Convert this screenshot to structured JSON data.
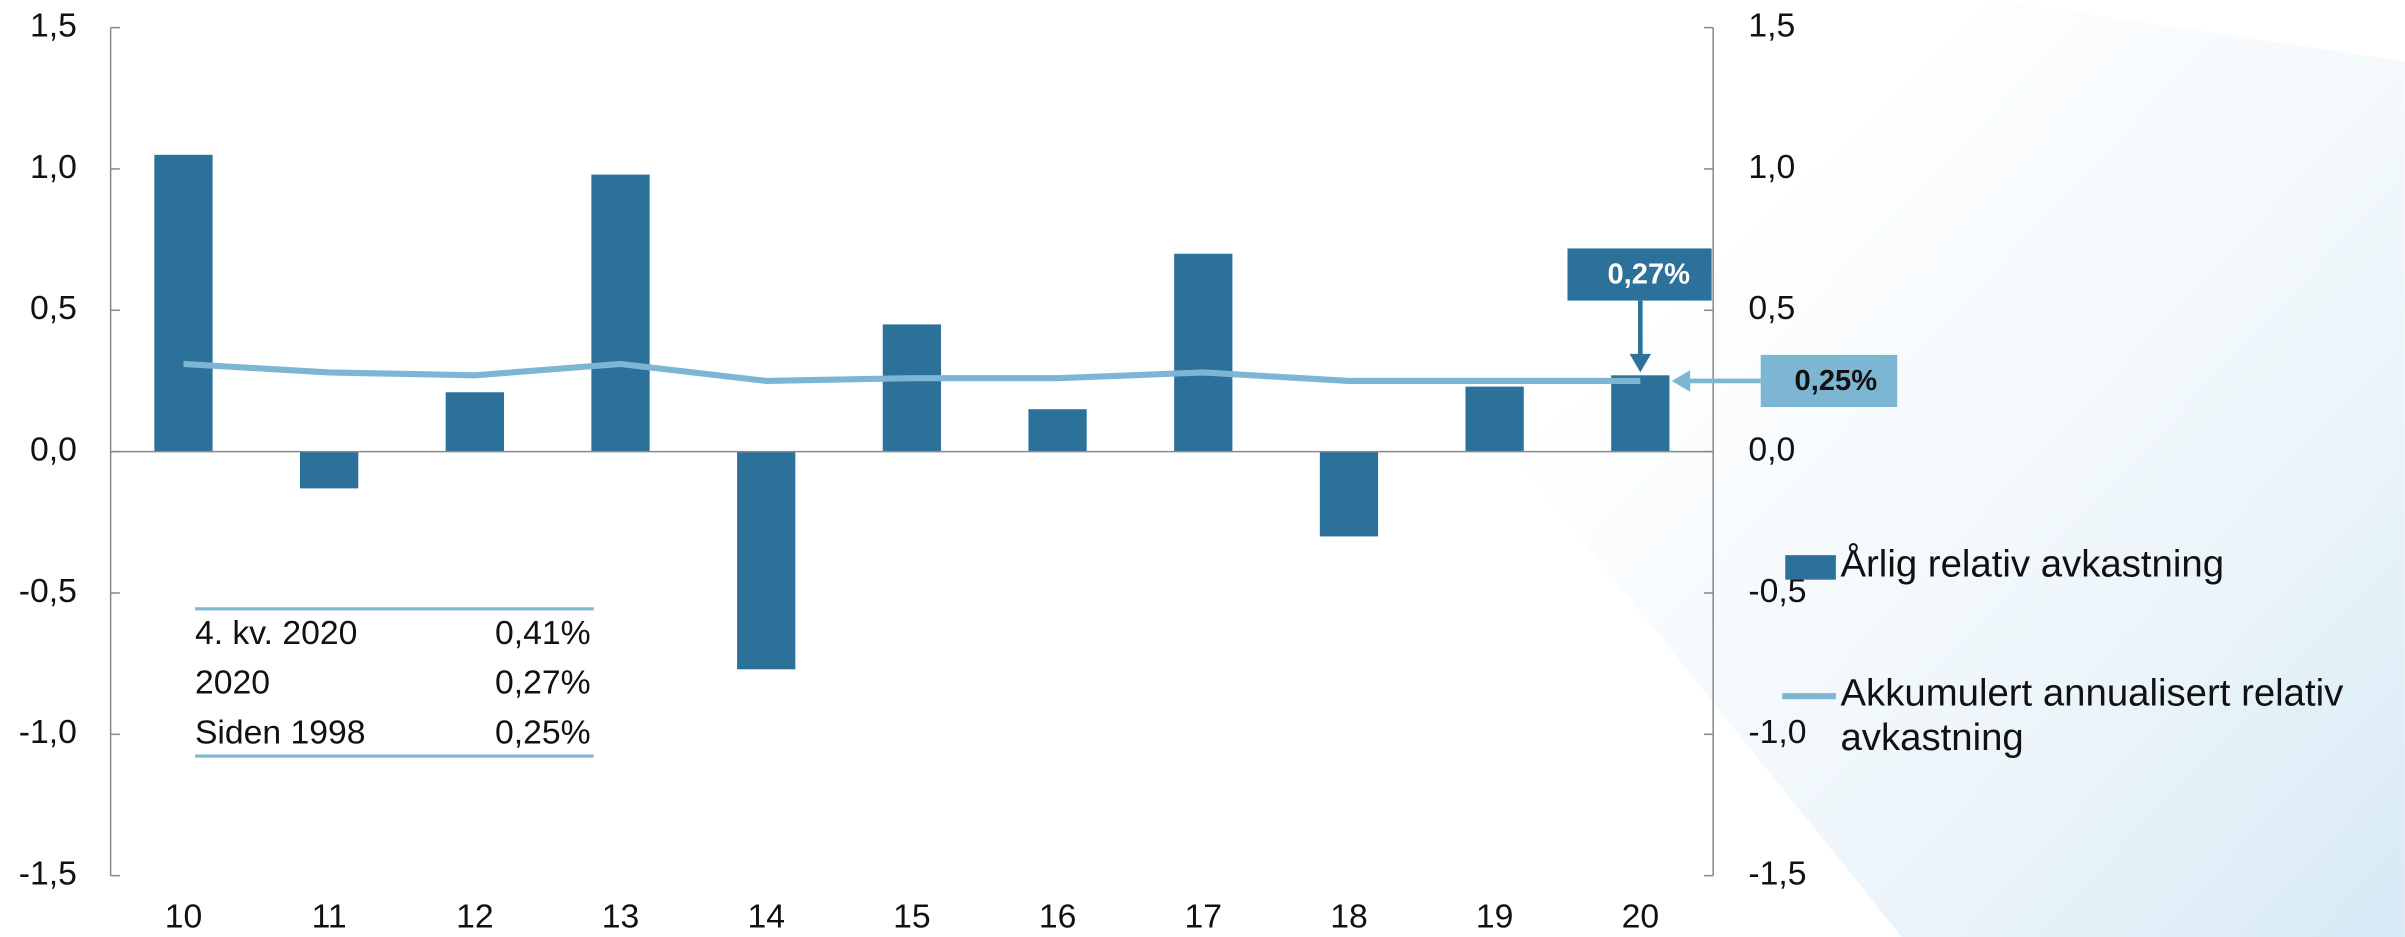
{
  "chart_data": {
    "type": "bar",
    "categories": [
      "10",
      "11",
      "12",
      "13",
      "14",
      "15",
      "16",
      "17",
      "18",
      "19",
      "20"
    ],
    "series": [
      {
        "name": "Årlig relativ avkastning",
        "type": "bar",
        "color": "#2b7199",
        "values": [
          1.05,
          -0.13,
          0.21,
          0.98,
          -0.77,
          0.45,
          0.15,
          0.7,
          -0.3,
          0.23,
          0.27
        ],
        "value_labels": [
          null,
          null,
          null,
          null,
          null,
          null,
          null,
          null,
          null,
          null,
          "0,27%"
        ]
      },
      {
        "name": "Akkumulert annualisert relativ avkastning",
        "type": "line",
        "axis": "y2",
        "color": "#7db6d3",
        "values": [
          0.31,
          0.28,
          0.27,
          0.31,
          0.25,
          0.26,
          0.26,
          0.28,
          0.25,
          0.25,
          0.25
        ],
        "value_labels": [
          null,
          null,
          null,
          null,
          null,
          null,
          null,
          null,
          null,
          null,
          "0,25%"
        ]
      }
    ],
    "ylim": [
      -1.5,
      1.5
    ],
    "yticks": [
      {
        "value": -1.5,
        "label": "-1,5"
      },
      {
        "value": -1.0,
        "label": "-1,0"
      },
      {
        "value": -0.5,
        "label": "-0,5"
      },
      {
        "value": 0,
        "label": "0,0"
      },
      {
        "value": 0.5,
        "label": "0,5"
      },
      {
        "value": 1.0,
        "label": "1,0"
      },
      {
        "value": 1.5,
        "label": "1,5"
      }
    ],
    "y2lim": [
      -1.5,
      1.5
    ],
    "y2ticks": [
      {
        "value": -1.5,
        "label": "-1,5"
      },
      {
        "value": -1.0,
        "label": "-1,0"
      },
      {
        "value": -0.5,
        "label": "-0,5"
      },
      {
        "value": 0,
        "label": "0,0"
      },
      {
        "value": 0.5,
        "label": "0,5"
      },
      {
        "value": 1.0,
        "label": "1,0"
      },
      {
        "value": 1.5,
        "label": "1,5"
      }
    ],
    "grid": false,
    "legend": "right",
    "stats_table": [
      [
        "4. kv. 2020",
        "0,41%"
      ],
      [
        "2020",
        "0,27%"
      ],
      [
        "Siden 1998",
        "0,25%"
      ]
    ]
  }
}
